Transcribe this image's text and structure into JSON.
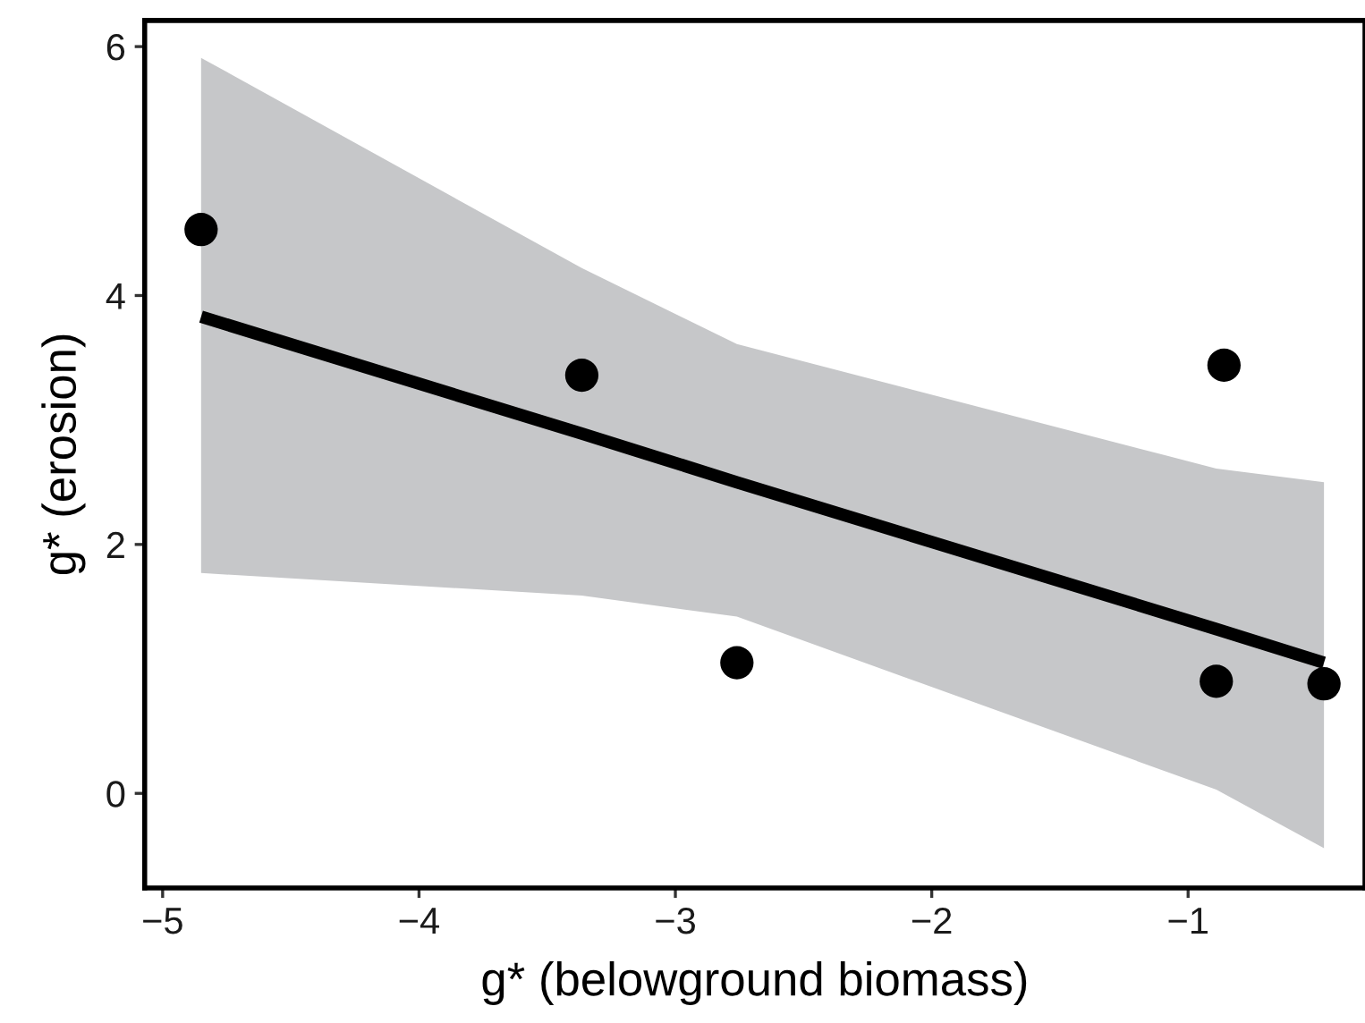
{
  "chart_data": {
    "type": "scatter",
    "xlabel": "g* (belowground biomass)",
    "ylabel": "g* (erosion)",
    "xlim": [
      -5.07,
      -0.31
    ],
    "ylim": [
      -0.76,
      6.21
    ],
    "xticks": [
      -5,
      -4,
      -3,
      -2,
      -1
    ],
    "yticks": [
      0,
      2,
      4,
      6
    ],
    "grid": false,
    "series": [
      {
        "marker": "circle",
        "color": "#000000",
        "x": [
          -4.85,
          -3.365,
          -2.76,
          -0.86,
          -0.89,
          -0.47
        ],
        "values": [
          4.53,
          3.36,
          1.05,
          3.44,
          0.9,
          0.88
        ]
      },
      {
        "type": "line",
        "color": "#000000",
        "marker": "none",
        "line_style": "solid",
        "x": [
          -4.85,
          -3.365,
          -2.76,
          -0.89,
          -0.47
        ],
        "values": [
          3.83,
          2.89,
          2.5,
          1.32,
          1.05
        ],
        "lower": [
          1.77,
          1.59,
          1.42,
          0.03,
          -0.44
        ],
        "upper": [
          5.91,
          4.22,
          3.61,
          2.61,
          2.5
        ]
      }
    ]
  }
}
